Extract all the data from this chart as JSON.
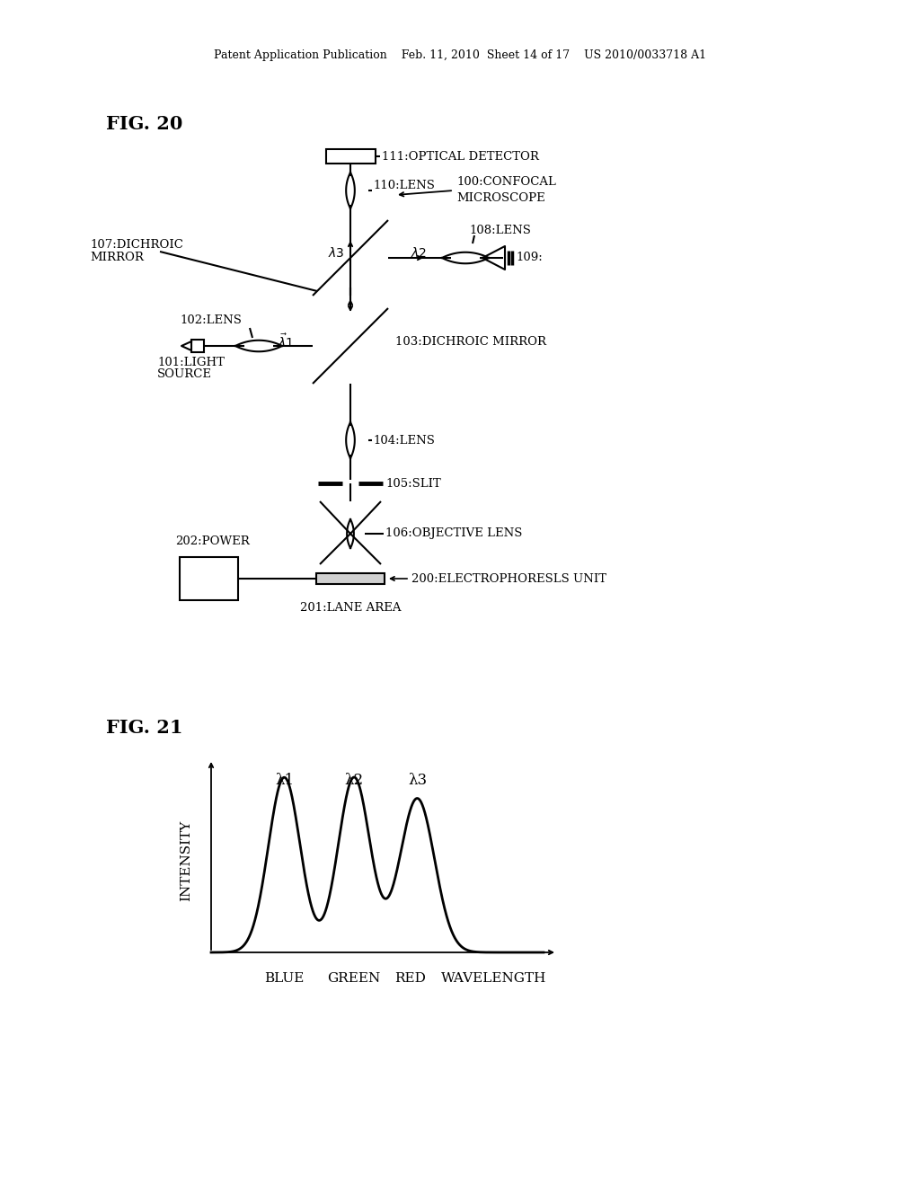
{
  "bg_color": "#ffffff",
  "header_text": "Patent Application Publication    Feb. 11, 2010  Sheet 14 of 17    US 2010/0033718 A1",
  "fig20_label": "FIG. 20",
  "fig21_label": "FIG. 21",
  "label_111": "111:OPTICAL DETECTOR",
  "label_110": "110:LENS",
  "label_100a": "100:CONFOCAL",
  "label_100b": "MICROSCOPE",
  "label_107a": "107:DICHROIC",
  "label_107b": "MIRROR",
  "label_108": "108:LENS",
  "label_109": "109:",
  "label_102": "102:LENS",
  "label_103": "103:DICHROIC MIRROR",
  "label_101a": "101:LIGHT",
  "label_101b": "SOURCE",
  "label_104": "104:LENS",
  "label_105": "105:SLIT",
  "label_202": "202:POWER",
  "label_106": "106:OBJECTIVE LENS",
  "label_200": "200:ELECTROPHORESLS UNIT",
  "label_201": "201:LANE AREA",
  "fig21_ylabel": "INTENSITY",
  "fig21_xlabel_blue": "BLUE",
  "fig21_xlabel_green": "GREEN",
  "fig21_xlabel_red": "RED",
  "fig21_xlabel_wl": "WAVELENGTH",
  "lam1": "λ1",
  "lam2": "λ2",
  "lam3": "λ3",
  "lam1s": "λ1",
  "lam2s": "λ2",
  "lam3s": "λ3"
}
